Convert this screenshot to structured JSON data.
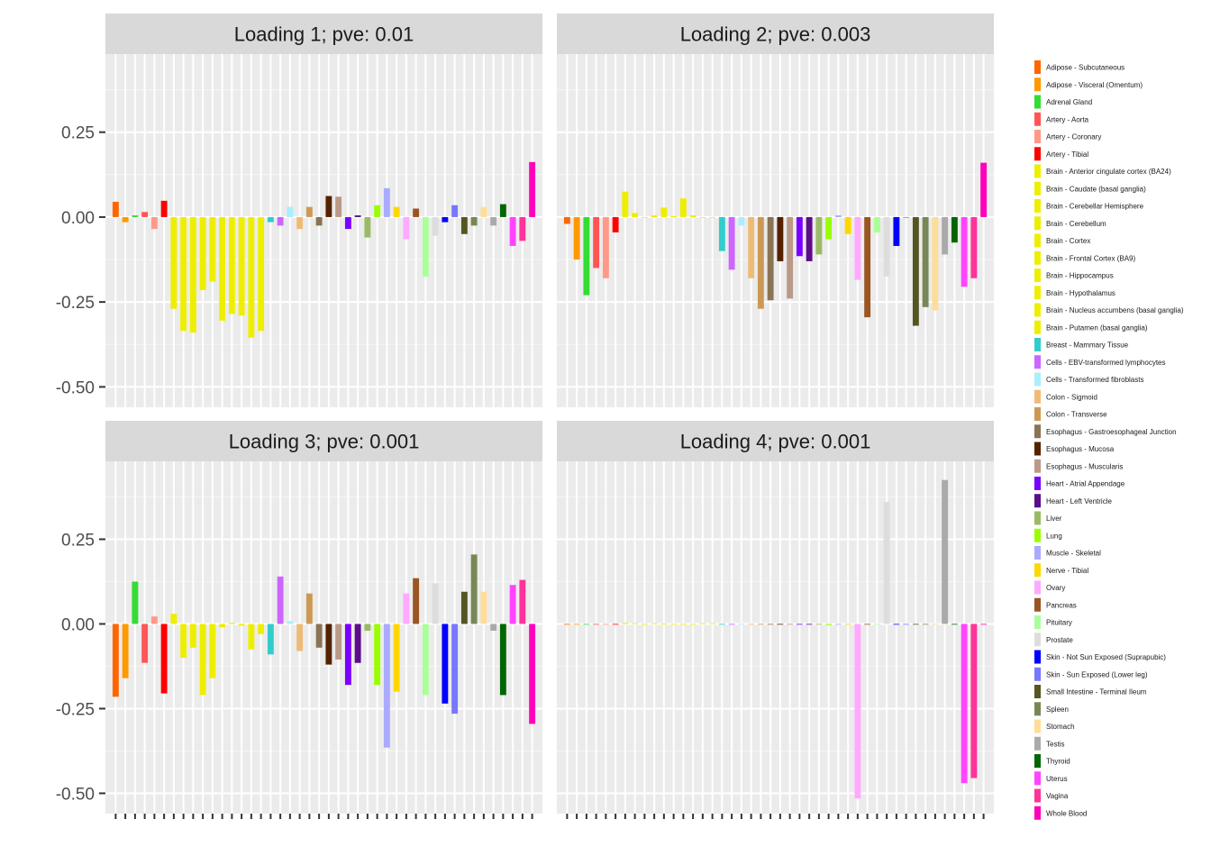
{
  "chart_data": {
    "type": "bar",
    "ylim": [
      -0.56,
      0.48
    ],
    "y_ticks": [
      {
        "value": 0.25,
        "label": "0.25"
      },
      {
        "value": 0.0,
        "label": "0.00"
      },
      {
        "value": -0.25,
        "label": "-0.25"
      },
      {
        "value": -0.5,
        "label": "-0.50"
      }
    ],
    "grid": true,
    "legend_position": "right",
    "categories": [
      "Adipose - Subcutaneous",
      "Adipose - Visceral (Omentum)",
      "Adrenal Gland",
      "Artery - Aorta",
      "Artery - Coronary",
      "Artery - Tibial",
      "Brain - Anterior cingulate cortex (BA24)",
      "Brain - Caudate (basal ganglia)",
      "Brain - Cerebellar Hemisphere",
      "Brain - Cerebellum",
      "Brain - Cortex",
      "Brain - Frontal Cortex (BA9)",
      "Brain - Hippocampus",
      "Brain - Hypothalamus",
      "Brain - Nucleus accumbens (basal ganglia)",
      "Brain - Putamen (basal ganglia)",
      "Breast - Mammary Tissue",
      "Cells - EBV-transformed lymphocytes",
      "Cells - Transformed fibroblasts",
      "Colon - Sigmoid",
      "Colon - Transverse",
      "Esophagus - Gastroesophageal Junction",
      "Esophagus - Mucosa",
      "Esophagus - Muscularis",
      "Heart - Atrial Appendage",
      "Heart - Left Ventricle",
      "Liver",
      "Lung",
      "Muscle - Skeletal",
      "Nerve - Tibial",
      "Ovary",
      "Pancreas",
      "Pituitary",
      "Prostate",
      "Skin - Not Sun Exposed (Suprapubic)",
      "Skin - Sun Exposed (Lower leg)",
      "Small Intestine - Terminal Ileum",
      "Spleen",
      "Stomach",
      "Testis",
      "Thyroid",
      "Uterus",
      "Vagina",
      "Whole Blood"
    ],
    "colors": [
      "#FF6600",
      "#FF9900",
      "#33DD33",
      "#FF5555",
      "#FF9988",
      "#FF0000",
      "#EEEE00",
      "#EEEE00",
      "#EEEE00",
      "#EEEE00",
      "#EEEE00",
      "#EEEE00",
      "#EEEE00",
      "#EEEE00",
      "#EEEE00",
      "#EEEE00",
      "#33CCCC",
      "#CC66FF",
      "#AAEEFF",
      "#EEBB77",
      "#CC9955",
      "#8B7355",
      "#552200",
      "#BB9988",
      "#7A00FF",
      "#5C0D8B",
      "#99BB66",
      "#99FF00",
      "#AAAAFF",
      "#FFD700",
      "#FFAAFF",
      "#995522",
      "#AAFF99",
      "#DDDDDD",
      "#0000FF",
      "#7777FF",
      "#555522",
      "#778855",
      "#FFDD99",
      "#AAAAAA",
      "#006600",
      "#FF44FF",
      "#FF3399",
      "#FF00BB"
    ],
    "panels": [
      {
        "title": "Loading 1; pve: 0.01",
        "values": [
          0.045,
          -0.015,
          0.005,
          0.015,
          -0.035,
          0.048,
          -0.27,
          -0.335,
          -0.34,
          -0.215,
          -0.19,
          -0.305,
          -0.285,
          -0.29,
          -0.355,
          -0.335,
          -0.015,
          -0.025,
          0.03,
          -0.035,
          0.03,
          -0.025,
          0.062,
          0.06,
          -0.035,
          0.005,
          -0.06,
          0.035,
          0.085,
          0.03,
          -0.065,
          0.025,
          -0.175,
          -0.055,
          -0.015,
          0.035,
          -0.05,
          -0.025,
          0.03,
          -0.025,
          0.038,
          -0.085,
          -0.07,
          0.162
        ]
      },
      {
        "title": "Loading 2; pve: 0.003",
        "values": [
          -0.02,
          -0.125,
          -0.23,
          -0.15,
          -0.18,
          -0.045,
          0.075,
          0.012,
          0.0,
          0.005,
          0.028,
          0.003,
          0.055,
          0.005,
          0.0,
          0.0,
          -0.1,
          -0.155,
          -0.025,
          -0.18,
          -0.27,
          -0.245,
          -0.13,
          -0.24,
          -0.115,
          -0.13,
          -0.11,
          -0.065,
          0.005,
          -0.05,
          -0.185,
          -0.295,
          -0.045,
          -0.175,
          -0.085,
          0.0,
          -0.32,
          -0.265,
          -0.275,
          -0.11,
          -0.075,
          -0.205,
          -0.18,
          0.16
        ]
      },
      {
        "title": "Loading 3; pve: 0.001",
        "values": [
          -0.215,
          -0.16,
          0.125,
          -0.115,
          0.022,
          -0.205,
          0.03,
          -0.1,
          -0.07,
          -0.21,
          -0.16,
          -0.01,
          0.003,
          -0.005,
          -0.075,
          -0.03,
          -0.09,
          0.14,
          0.008,
          -0.08,
          0.09,
          -0.07,
          -0.12,
          -0.105,
          -0.18,
          -0.115,
          -0.02,
          -0.18,
          -0.365,
          -0.2,
          0.09,
          0.135,
          -0.21,
          0.12,
          -0.235,
          -0.265,
          0.095,
          0.205,
          0.095,
          -0.02,
          -0.21,
          0.115,
          0.13,
          -0.295
        ]
      },
      {
        "title": "Loading 4; pve: 0.001",
        "values": [
          0,
          0,
          0,
          0,
          0,
          0,
          0.003,
          0.002,
          0,
          0.002,
          0.001,
          0,
          0,
          0,
          0.002,
          0.002,
          0.0,
          0,
          0,
          0,
          0,
          0,
          0,
          0,
          0,
          0,
          0,
          -0.003,
          0,
          0,
          -0.515,
          0,
          0,
          0.36,
          0,
          0.0,
          0,
          0,
          0,
          0.425,
          0,
          -0.47,
          -0.455,
          0
        ]
      }
    ]
  }
}
